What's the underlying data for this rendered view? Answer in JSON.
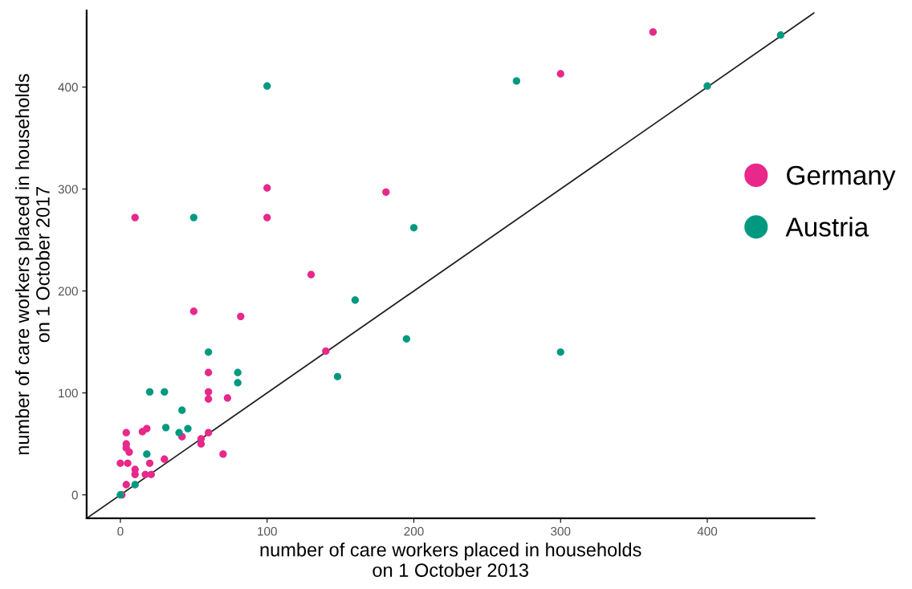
{
  "chart_data": {
    "type": "scatter",
    "xlabel": "number of care workers placed in households\non 1 October 2013",
    "ylabel": "number of care workers placed in households\non 1 October 2017",
    "xlim": [
      -23,
      473
    ],
    "ylim": [
      -23,
      475
    ],
    "xticks": [
      0,
      100,
      200,
      300,
      400
    ],
    "yticks": [
      0,
      100,
      200,
      300,
      400
    ],
    "grid": false,
    "legend": "right",
    "marker": "circle",
    "series": [
      {
        "name": "Germany",
        "color": "#e8288a",
        "x": [
          363,
          300,
          181,
          100,
          10,
          100,
          130,
          50,
          82,
          140,
          60,
          60,
          60,
          73,
          4,
          15,
          18,
          42,
          60,
          55,
          55,
          4,
          4,
          6,
          70,
          0,
          5,
          20,
          30,
          10,
          10,
          17,
          21,
          4,
          1
        ],
        "values": [
          454,
          413,
          297,
          301,
          272,
          272,
          216,
          180,
          175,
          141,
          120,
          101,
          94,
          95,
          61,
          62,
          65,
          57,
          61,
          55,
          50,
          50,
          46,
          42,
          40,
          31,
          31,
          31,
          35,
          25,
          20,
          20,
          20,
          10,
          0
        ]
      },
      {
        "name": "Austria",
        "color": "#009980",
        "x": [
          100,
          270,
          400,
          450,
          50,
          200,
          160,
          195,
          148,
          300,
          60,
          80,
          80,
          20,
          30,
          42,
          31,
          40,
          46,
          18,
          10,
          0
        ],
        "values": [
          401,
          406,
          401,
          451,
          272,
          262,
          191,
          153,
          116,
          140,
          140,
          120,
          110,
          101,
          101,
          83,
          66,
          61,
          65,
          40,
          10,
          0
        ]
      },
      {
        "type": "line",
        "marker": "none",
        "color": "#222222",
        "x": [
          -23,
          473
        ],
        "values": [
          -23,
          473
        ]
      }
    ]
  }
}
